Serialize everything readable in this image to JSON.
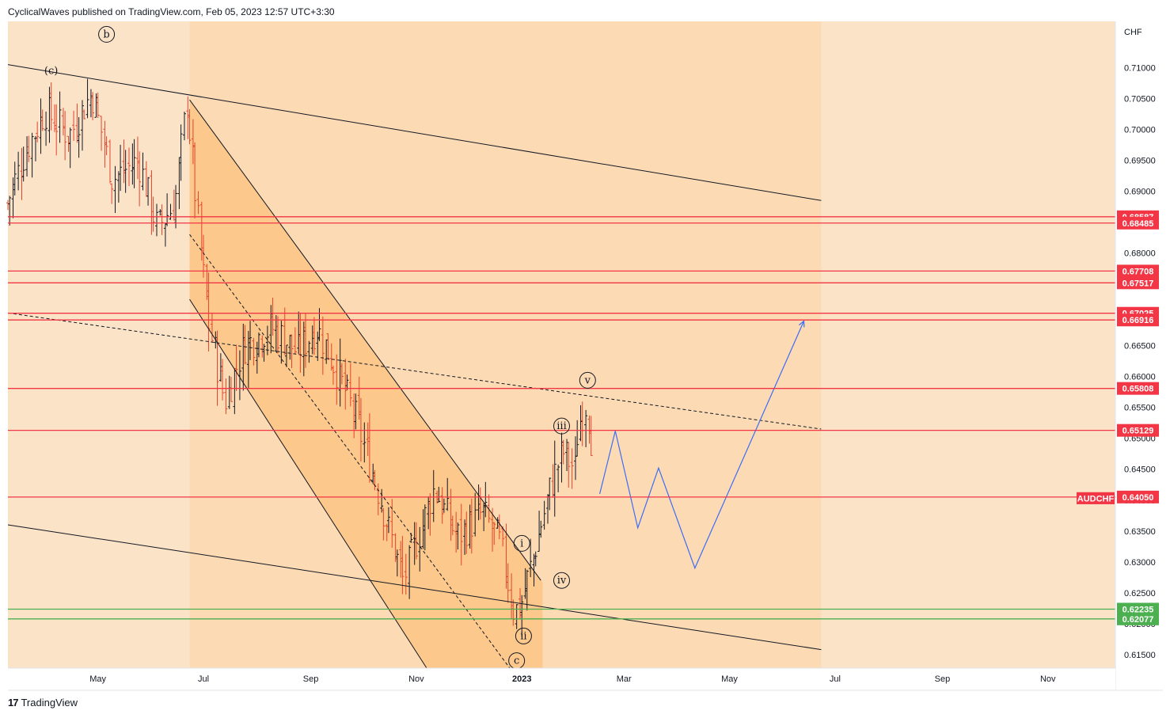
{
  "header": {
    "text": "CyclicalWaves published on TradingView.com, Feb 05, 2023 12:57 UTC+3:30"
  },
  "footer": {
    "brand": "TradingView",
    "logo_glyph": "17"
  },
  "colors": {
    "bg": "#fbe3c8",
    "pane": "#fbd9b0",
    "channel": "#fbc485",
    "up": "#131722",
    "down": "#e3442b",
    "red_level": "#f23645",
    "green_level": "#4caf50",
    "projection": "#3d6cf5"
  },
  "chart_data": {
    "type": "candlestick",
    "symbol": "AUDCHF",
    "currency_label": "CHF",
    "y_ticks": [
      "0.71000",
      "0.70500",
      "0.70000",
      "0.69500",
      "0.69000",
      "0.68500",
      "0.68000",
      "0.67500",
      "0.67000",
      "0.66500",
      "0.66000",
      "0.65500",
      "0.65000",
      "0.64500",
      "0.64000",
      "0.63500",
      "0.63000",
      "0.62500",
      "0.62000",
      "0.61500"
    ],
    "y_range": [
      0.6128,
      0.7175
    ],
    "x_ticks": [
      {
        "label": "May",
        "date": "2022-05-01",
        "bold": false
      },
      {
        "label": "Jul",
        "date": "2022-07-01",
        "bold": false
      },
      {
        "label": "Sep",
        "date": "2022-09-01",
        "bold": false
      },
      {
        "label": "Nov",
        "date": "2022-11-01",
        "bold": false
      },
      {
        "label": "2023",
        "date": "2023-01-01",
        "bold": true
      },
      {
        "label": "Mar",
        "date": "2023-03-01",
        "bold": false
      },
      {
        "label": "May",
        "date": "2023-05-01",
        "bold": false
      },
      {
        "label": "Jul",
        "date": "2023-07-01",
        "bold": false
      },
      {
        "label": "Sep",
        "date": "2023-09-01",
        "bold": false
      },
      {
        "label": "Nov",
        "date": "2023-11-01",
        "bold": false
      }
    ],
    "x_range": [
      "2022-03-10",
      "2023-12-10"
    ],
    "price_levels": [
      {
        "value": "0.68587",
        "color": "red"
      },
      {
        "value": "0.68485",
        "color": "red"
      },
      {
        "value": "0.67708",
        "color": "red"
      },
      {
        "value": "0.67517",
        "color": "red"
      },
      {
        "value": "0.67025",
        "color": "red"
      },
      {
        "value": "0.66916",
        "color": "red"
      },
      {
        "value": "0.65808",
        "color": "red"
      },
      {
        "value": "0.65129",
        "color": "red"
      },
      {
        "value": "0.64050",
        "color": "red"
      },
      {
        "value": "0.62235",
        "color": "green"
      },
      {
        "value": "0.62077",
        "color": "green"
      }
    ],
    "current_price_label": "AUDCHF",
    "current_price": 0.6405,
    "path_series": [
      [
        "2022-03-10",
        0.688
      ],
      [
        "2022-03-20",
        0.696
      ],
      [
        "2022-04-01",
        0.703
      ],
      [
        "2022-04-15",
        0.699
      ],
      [
        "2022-04-28",
        0.706
      ],
      [
        "2022-05-10",
        0.692
      ],
      [
        "2022-05-25",
        0.695
      ],
      [
        "2022-06-05",
        0.684
      ],
      [
        "2022-06-15",
        0.688
      ],
      [
        "2022-06-22",
        0.7045
      ],
      [
        "2022-06-30",
        0.68
      ],
      [
        "2022-07-05",
        0.668
      ],
      [
        "2022-07-14",
        0.656
      ],
      [
        "2022-07-25",
        0.665
      ],
      [
        "2022-08-10",
        0.668
      ],
      [
        "2022-08-25",
        0.664
      ],
      [
        "2022-09-05",
        0.668
      ],
      [
        "2022-09-15",
        0.662
      ],
      [
        "2022-09-28",
        0.653
      ],
      [
        "2022-10-10",
        0.642
      ],
      [
        "2022-10-25",
        0.627
      ],
      [
        "2022-11-05",
        0.636
      ],
      [
        "2022-11-12",
        0.642
      ],
      [
        "2022-11-25",
        0.634
      ],
      [
        "2022-12-10",
        0.638
      ],
      [
        "2022-12-20",
        0.633
      ],
      [
        "2022-12-28",
        0.622
      ],
      [
        "2023-01-01",
        0.623
      ],
      [
        "2023-01-10",
        0.633
      ],
      [
        "2023-01-18",
        0.642
      ],
      [
        "2023-01-25",
        0.648
      ],
      [
        "2023-02-01",
        0.645
      ],
      [
        "2023-02-03",
        0.652
      ],
      [
        "2023-02-08",
        0.656
      ],
      [
        "2023-02-12",
        0.647
      ]
    ],
    "projection": [
      [
        "2023-02-15",
        0.641
      ],
      [
        "2023-02-24",
        0.6512
      ],
      [
        "2023-03-09",
        0.6355
      ],
      [
        "2023-03-21",
        0.6452
      ],
      [
        "2023-04-11",
        0.629
      ],
      [
        "2023-06-13",
        0.669
      ]
    ],
    "trendlines": [
      {
        "style": "solid",
        "from": [
          "2022-03-10",
          0.7105
        ],
        "to": [
          "2023-06-23",
          0.6885
        ]
      },
      {
        "style": "solid",
        "from": [
          "2022-03-10",
          0.636
        ],
        "to": [
          "2023-06-23",
          0.6158
        ]
      },
      {
        "style": "solid",
        "from": [
          "2022-06-23",
          0.6725
        ],
        "to": [
          "2022-11-07",
          0.6128
        ]
      },
      {
        "style": "solid",
        "from": [
          "2022-06-23",
          0.7048
        ],
        "to": [
          "2023-01-12",
          0.627
        ]
      },
      {
        "style": "dashed",
        "from": [
          "2022-06-23",
          0.683
        ],
        "to": [
          "2022-12-25",
          0.6128
        ]
      },
      {
        "style": "dashed",
        "from": [
          "2022-03-10",
          0.6703
        ],
        "to": [
          "2023-06-23",
          0.6515
        ]
      }
    ],
    "channel_zone": {
      "x_from": "2022-06-23",
      "x_to": "2023-01-13",
      "upper_top": 0.7048,
      "upper_end": 0.627,
      "lower_top": 0.6725,
      "lower_end": 0.6128
    },
    "forecast_zone": {
      "x_to": "2023-06-23"
    },
    "wave_labels": [
      {
        "text": "b",
        "date": "2022-05-06",
        "price": 0.7154,
        "circled": true
      },
      {
        "text": "(c)",
        "date": "2022-04-04",
        "price": 0.7095,
        "circled": false
      },
      {
        "text": "c",
        "date": "2022-12-29",
        "price": 0.614,
        "circled": true
      },
      {
        "text": "i",
        "date": "2023-01-01",
        "price": 0.633,
        "circled": true
      },
      {
        "text": "ii",
        "date": "2023-01-02",
        "price": 0.618,
        "circled": true
      },
      {
        "text": "iii",
        "date": "2023-01-24",
        "price": 0.652,
        "circled": true
      },
      {
        "text": "iv",
        "date": "2023-01-24",
        "price": 0.627,
        "circled": true
      },
      {
        "text": "v",
        "date": "2023-02-08",
        "price": 0.6594,
        "circled": true
      }
    ]
  }
}
